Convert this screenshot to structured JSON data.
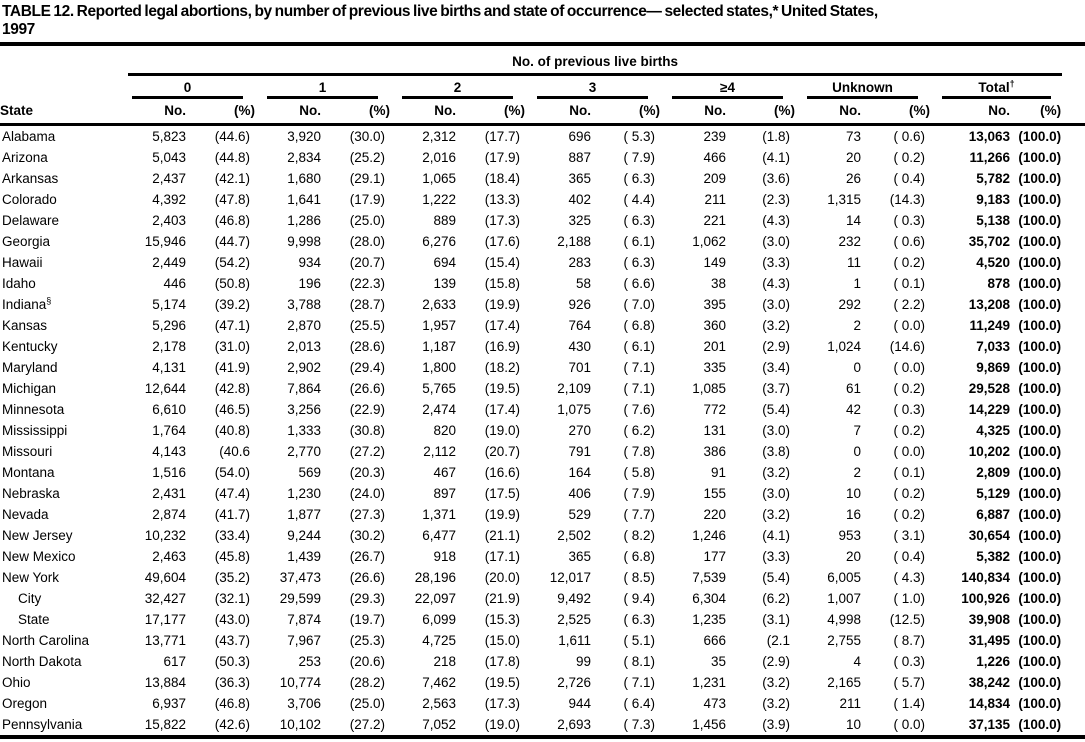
{
  "title": {
    "line1": "TABLE 12. Reported legal abortions, by number of previous live births and state of occurrence— selected states,* United States,",
    "line2": "1997"
  },
  "table": {
    "spanner": "No. of previous live births",
    "state_header": "State",
    "groups": [
      {
        "label": "0",
        "sup": ""
      },
      {
        "label": "1",
        "sup": ""
      },
      {
        "label": "2",
        "sup": ""
      },
      {
        "label": "3",
        "sup": ""
      },
      {
        "label": "≥4",
        "sup": ""
      },
      {
        "label": "Unknown",
        "sup": ""
      },
      {
        "label": "Total",
        "sup": "†"
      }
    ],
    "subheaders": [
      "No.",
      "(%)"
    ],
    "rows": [
      {
        "state": "Alabama",
        "sup": "",
        "indent": false,
        "values": [
          "5,823",
          "(44.6)",
          "3,920",
          "(30.0)",
          "2,312",
          "(17.7)",
          "696",
          "( 5.3)",
          "239",
          "(1.8)",
          "73",
          "( 0.6)",
          "13,063",
          "(100.0)"
        ]
      },
      {
        "state": "Arizona",
        "sup": "",
        "indent": false,
        "values": [
          "5,043",
          "(44.8)",
          "2,834",
          "(25.2)",
          "2,016",
          "(17.9)",
          "887",
          "( 7.9)",
          "466",
          "(4.1)",
          "20",
          "( 0.2)",
          "11,266",
          "(100.0)"
        ]
      },
      {
        "state": "Arkansas",
        "sup": "",
        "indent": false,
        "values": [
          "2,437",
          "(42.1)",
          "1,680",
          "(29.1)",
          "1,065",
          "(18.4)",
          "365",
          "( 6.3)",
          "209",
          "(3.6)",
          "26",
          "( 0.4)",
          "5,782",
          "(100.0)"
        ]
      },
      {
        "state": "Colorado",
        "sup": "",
        "indent": false,
        "values": [
          "4,392",
          "(47.8)",
          "1,641",
          "(17.9)",
          "1,222",
          "(13.3)",
          "402",
          "( 4.4)",
          "211",
          "(2.3)",
          "1,315",
          "(14.3)",
          "9,183",
          "(100.0)"
        ]
      },
      {
        "state": "Delaware",
        "sup": "",
        "indent": false,
        "values": [
          "2,403",
          "(46.8)",
          "1,286",
          "(25.0)",
          "889",
          "(17.3)",
          "325",
          "( 6.3)",
          "221",
          "(4.3)",
          "14",
          "( 0.3)",
          "5,138",
          "(100.0)"
        ]
      },
      {
        "state": "Georgia",
        "sup": "",
        "indent": false,
        "values": [
          "15,946",
          "(44.7)",
          "9,998",
          "(28.0)",
          "6,276",
          "(17.6)",
          "2,188",
          "( 6.1)",
          "1,062",
          "(3.0)",
          "232",
          "( 0.6)",
          "35,702",
          "(100.0)"
        ]
      },
      {
        "state": "Hawaii",
        "sup": "",
        "indent": false,
        "values": [
          "2,449",
          "(54.2)",
          "934",
          "(20.7)",
          "694",
          "(15.4)",
          "283",
          "( 6.3)",
          "149",
          "(3.3)",
          "11",
          "( 0.2)",
          "4,520",
          "(100.0)"
        ]
      },
      {
        "state": "Idaho",
        "sup": "",
        "indent": false,
        "values": [
          "446",
          "(50.8)",
          "196",
          "(22.3)",
          "139",
          "(15.8)",
          "58",
          "( 6.6)",
          "38",
          "(4.3)",
          "1",
          "( 0.1)",
          "878",
          "(100.0)"
        ]
      },
      {
        "state": "Indiana",
        "sup": "§",
        "indent": false,
        "values": [
          "5,174",
          "(39.2)",
          "3,788",
          "(28.7)",
          "2,633",
          "(19.9)",
          "926",
          "( 7.0)",
          "395",
          "(3.0)",
          "292",
          "( 2.2)",
          "13,208",
          "(100.0)"
        ]
      },
      {
        "state": "Kansas",
        "sup": "",
        "indent": false,
        "values": [
          "5,296",
          "(47.1)",
          "2,870",
          "(25.5)",
          "1,957",
          "(17.4)",
          "764",
          "( 6.8)",
          "360",
          "(3.2)",
          "2",
          "( 0.0)",
          "11,249",
          "(100.0)"
        ]
      },
      {
        "state": "Kentucky",
        "sup": "",
        "indent": false,
        "values": [
          "2,178",
          "(31.0)",
          "2,013",
          "(28.6)",
          "1,187",
          "(16.9)",
          "430",
          "( 6.1)",
          "201",
          "(2.9)",
          "1,024",
          "(14.6)",
          "7,033",
          "(100.0)"
        ]
      },
      {
        "state": "Maryland",
        "sup": "",
        "indent": false,
        "values": [
          "4,131",
          "(41.9)",
          "2,902",
          "(29.4)",
          "1,800",
          "(18.2)",
          "701",
          "( 7.1)",
          "335",
          "(3.4)",
          "0",
          "( 0.0)",
          "9,869",
          "(100.0)"
        ]
      },
      {
        "state": "Michigan",
        "sup": "",
        "indent": false,
        "values": [
          "12,644",
          "(42.8)",
          "7,864",
          "(26.6)",
          "5,765",
          "(19.5)",
          "2,109",
          "( 7.1)",
          "1,085",
          "(3.7)",
          "61",
          "( 0.2)",
          "29,528",
          "(100.0)"
        ]
      },
      {
        "state": "Minnesota",
        "sup": "",
        "indent": false,
        "values": [
          "6,610",
          "(46.5)",
          "3,256",
          "(22.9)",
          "2,474",
          "(17.4)",
          "1,075",
          "( 7.6)",
          "772",
          "(5.4)",
          "42",
          "( 0.3)",
          "14,229",
          "(100.0)"
        ]
      },
      {
        "state": "Mississippi",
        "sup": "",
        "indent": false,
        "values": [
          "1,764",
          "(40.8)",
          "1,333",
          "(30.8)",
          "820",
          "(19.0)",
          "270",
          "( 6.2)",
          "131",
          "(3.0)",
          "7",
          "( 0.2)",
          "4,325",
          "(100.0)"
        ]
      },
      {
        "state": "Missouri",
        "sup": "",
        "indent": false,
        "values": [
          "4,143",
          "(40.6",
          "2,770",
          "(27.2)",
          "2,112",
          "(20.7)",
          "791",
          "( 7.8)",
          "386",
          "(3.8)",
          "0",
          "( 0.0)",
          "10,202",
          "(100.0)"
        ]
      },
      {
        "state": "Montana",
        "sup": "",
        "indent": false,
        "values": [
          "1,516",
          "(54.0)",
          "569",
          "(20.3)",
          "467",
          "(16.6)",
          "164",
          "( 5.8)",
          "91",
          "(3.2)",
          "2",
          "( 0.1)",
          "2,809",
          "(100.0)"
        ]
      },
      {
        "state": "Nebraska",
        "sup": "",
        "indent": false,
        "values": [
          "2,431",
          "(47.4)",
          "1,230",
          "(24.0)",
          "897",
          "(17.5)",
          "406",
          "( 7.9)",
          "155",
          "(3.0)",
          "10",
          "( 0.2)",
          "5,129",
          "(100.0)"
        ]
      },
      {
        "state": "Nevada",
        "sup": "",
        "indent": false,
        "values": [
          "2,874",
          "(41.7)",
          "1,877",
          "(27.3)",
          "1,371",
          "(19.9)",
          "529",
          "( 7.7)",
          "220",
          "(3.2)",
          "16",
          "( 0.2)",
          "6,887",
          "(100.0)"
        ]
      },
      {
        "state": "New Jersey",
        "sup": "",
        "indent": false,
        "values": [
          "10,232",
          "(33.4)",
          "9,244",
          "(30.2)",
          "6,477",
          "(21.1)",
          "2,502",
          "( 8.2)",
          "1,246",
          "(4.1)",
          "953",
          "( 3.1)",
          "30,654",
          "(100.0)"
        ]
      },
      {
        "state": "New Mexico",
        "sup": "",
        "indent": false,
        "values": [
          "2,463",
          "(45.8)",
          "1,439",
          "(26.7)",
          "918",
          "(17.1)",
          "365",
          "( 6.8)",
          "177",
          "(3.3)",
          "20",
          "( 0.4)",
          "5,382",
          "(100.0)"
        ]
      },
      {
        "state": "New York",
        "sup": "",
        "indent": false,
        "values": [
          "49,604",
          "(35.2)",
          "37,473",
          "(26.6)",
          "28,196",
          "(20.0)",
          "12,017",
          "( 8.5)",
          "7,539",
          "(5.4)",
          "6,005",
          "( 4.3)",
          "140,834",
          "(100.0)"
        ]
      },
      {
        "state": "City",
        "sup": "",
        "indent": true,
        "values": [
          "32,427",
          "(32.1)",
          "29,599",
          "(29.3)",
          "22,097",
          "(21.9)",
          "9,492",
          "( 9.4)",
          "6,304",
          "(6.2)",
          "1,007",
          "( 1.0)",
          "100,926",
          "(100.0)"
        ]
      },
      {
        "state": "State",
        "sup": "",
        "indent": true,
        "values": [
          "17,177",
          "(43.0)",
          "7,874",
          "(19.7)",
          "6,099",
          "(15.3)",
          "2,525",
          "( 6.3)",
          "1,235",
          "(3.1)",
          "4,998",
          "(12.5)",
          "39,908",
          "(100.0)"
        ]
      },
      {
        "state": "North Carolina",
        "sup": "",
        "indent": false,
        "values": [
          "13,771",
          "(43.7)",
          "7,967",
          "(25.3)",
          "4,725",
          "(15.0)",
          "1,611",
          "( 5.1)",
          "666",
          "(2.1",
          "2,755",
          "( 8.7)",
          "31,495",
          "(100.0)"
        ]
      },
      {
        "state": "North Dakota",
        "sup": "",
        "indent": false,
        "values": [
          "617",
          "(50.3)",
          "253",
          "(20.6)",
          "218",
          "(17.8)",
          "99",
          "( 8.1)",
          "35",
          "(2.9)",
          "4",
          "( 0.3)",
          "1,226",
          "(100.0)"
        ]
      },
      {
        "state": "Ohio",
        "sup": "",
        "indent": false,
        "values": [
          "13,884",
          "(36.3)",
          "10,774",
          "(28.2)",
          "7,462",
          "(19.5)",
          "2,726",
          "( 7.1)",
          "1,231",
          "(3.2)",
          "2,165",
          "( 5.7)",
          "38,242",
          "(100.0)"
        ]
      },
      {
        "state": "Oregon",
        "sup": "",
        "indent": false,
        "values": [
          "6,937",
          "(46.8)",
          "3,706",
          "(25.0)",
          "2,563",
          "(17.3)",
          "944",
          "( 6.4)",
          "473",
          "(3.2)",
          "211",
          "( 1.4)",
          "14,834",
          "(100.0)"
        ]
      },
      {
        "state": "Pennsylvania",
        "sup": "",
        "indent": false,
        "values": [
          "15,822",
          "(42.6)",
          "10,102",
          "(27.2)",
          "7,052",
          "(19.0)",
          "2,693",
          "( 7.3)",
          "1,456",
          "(3.9)",
          "10",
          "( 0.0)",
          "37,135",
          "(100.0)"
        ]
      }
    ]
  }
}
